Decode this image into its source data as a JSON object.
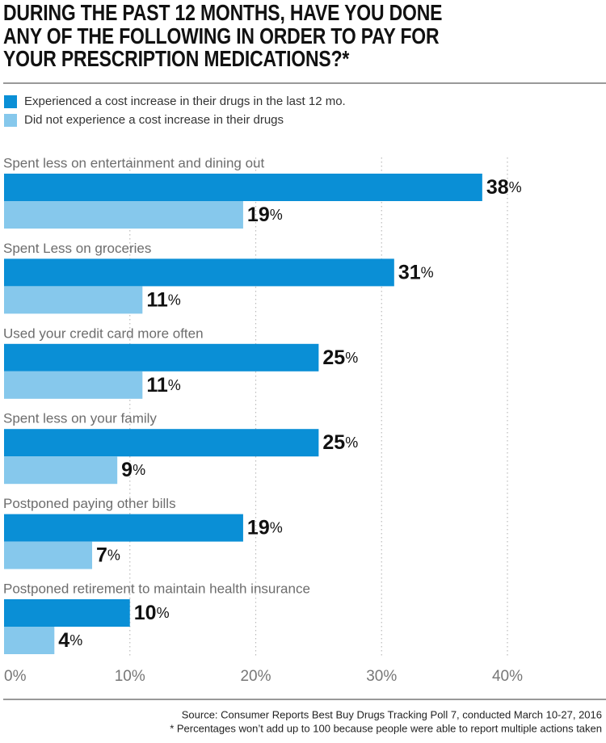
{
  "chart_data": {
    "type": "bar",
    "orientation": "horizontal",
    "title": "During the past 12 months, have you done any of the following in order to pay for your prescription medications?*",
    "categories": [
      "Spent less on entertainment and dining out",
      "Spent Less on groceries",
      "Used your credit card more often",
      "Spent less on your family",
      "Postponed paying other bills",
      "Postponed retirement to maintain health insurance"
    ],
    "series": [
      {
        "name": "Experienced a cost increase in their drugs in the last 12 mo.",
        "color": "#0a8fd6",
        "values": [
          38,
          31,
          25,
          25,
          19,
          10
        ],
        "value_labels": [
          "38%",
          "31%",
          "25%",
          "25%",
          "19%",
          "10%"
        ]
      },
      {
        "name": "Did not experience a cost increase in their drugs",
        "color": "#86c8ec",
        "values": [
          19,
          11,
          11,
          9,
          7,
          4
        ],
        "value_labels": [
          "19%",
          "11%",
          "11%",
          "9%",
          "7%",
          "4%"
        ]
      }
    ],
    "xlim": [
      0,
      40
    ],
    "xticks": [
      {
        "value": 0,
        "label": "0%"
      },
      {
        "value": 10,
        "label": "10%"
      },
      {
        "value": 20,
        "label": "20%"
      },
      {
        "value": 30,
        "label": "30%"
      },
      {
        "value": 40,
        "label": "40%"
      }
    ],
    "grid": true,
    "source": "Source: Consumer Reports Best Buy Drugs Tracking Poll 7, conducted March 10-27, 2016",
    "note": "* Percentages won’t add up to 100 because people were able to report multiple actions taken"
  }
}
